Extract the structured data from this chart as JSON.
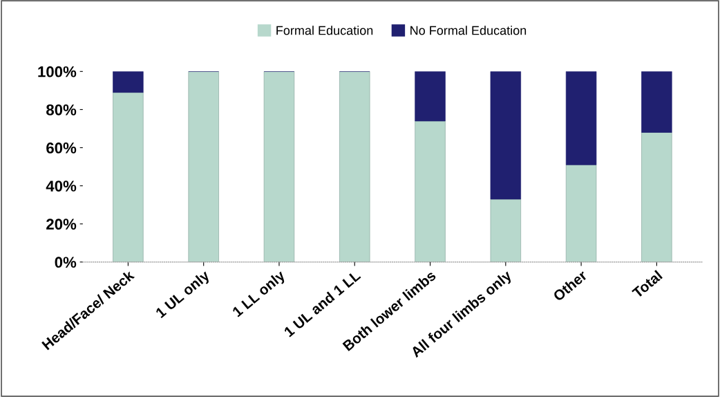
{
  "chart_data": {
    "type": "bar",
    "stacked": true,
    "categories": [
      "Head/Face/ Neck",
      "1 UL only",
      "1 LL only",
      "1 UL and 1 LL",
      "Both lower limbs",
      "All four limbs only",
      "Other",
      "Total"
    ],
    "series": [
      {
        "name": "Formal Education",
        "color": "#b7d8cc",
        "values": [
          89,
          100,
          100,
          100,
          74,
          33,
          51,
          68
        ]
      },
      {
        "name": "No Formal Education",
        "color": "#202070",
        "values": [
          11,
          0,
          0,
          0,
          26,
          67,
          49,
          32
        ]
      }
    ],
    "ylim": [
      0,
      100
    ],
    "yticks": [
      {
        "value": 0,
        "label": "0%"
      },
      {
        "value": 20,
        "label": "20%"
      },
      {
        "value": 40,
        "label": "40%"
      },
      {
        "value": 60,
        "label": "60%"
      },
      {
        "value": 80,
        "label": "80%"
      },
      {
        "value": 100,
        "label": "100%"
      }
    ],
    "grid": false,
    "legend": "top"
  }
}
